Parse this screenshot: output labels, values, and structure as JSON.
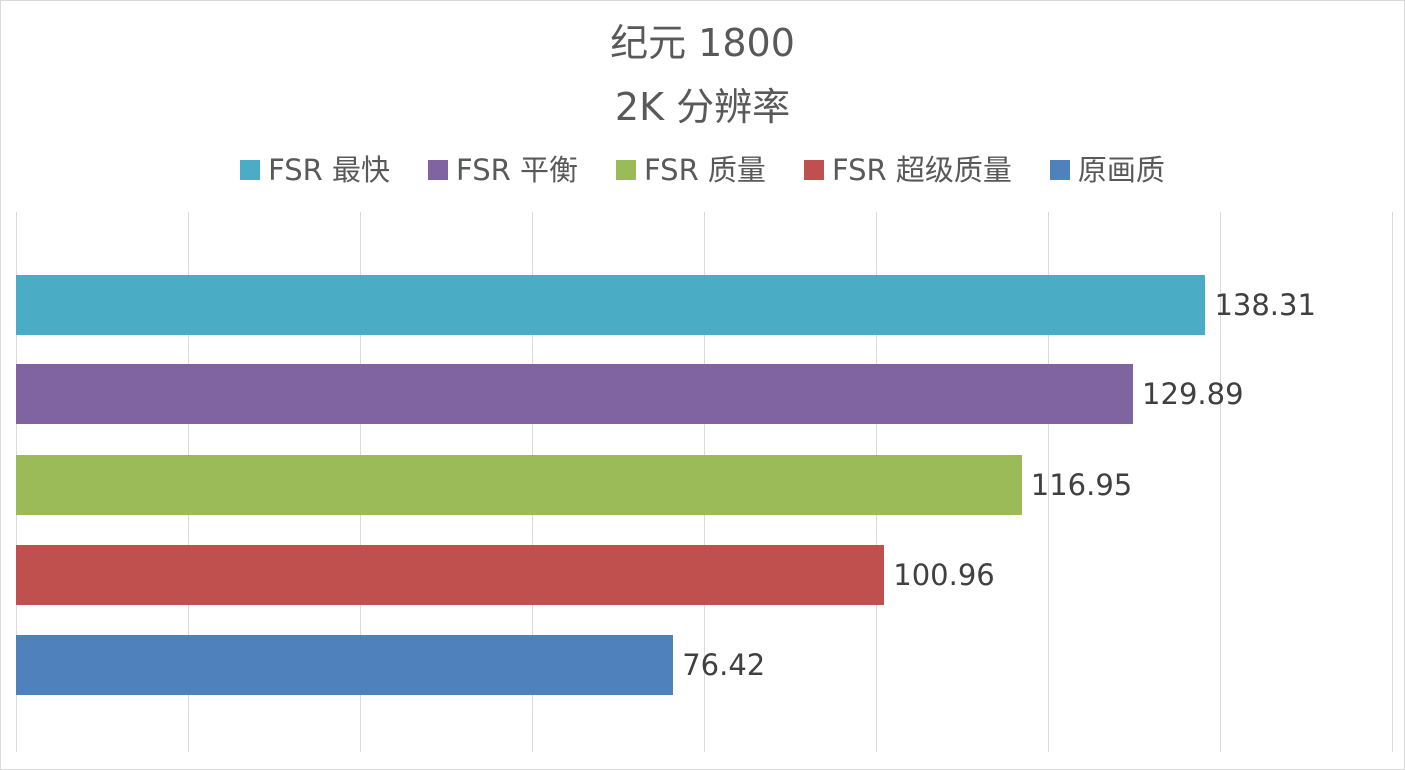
{
  "chart_data": {
    "type": "bar",
    "orientation": "horizontal",
    "title": "纪元 1800",
    "subtitle": "2K 分辨率",
    "xlabel": "",
    "ylabel": "",
    "xlim": [
      0,
      160
    ],
    "grid": true,
    "grid_step": 20,
    "legend_position": "top",
    "data_labels": true,
    "categories": [
      "FSR 最快",
      "FSR 平衡",
      "FSR 质量",
      "FSR 超级质量",
      "原画质"
    ],
    "series": [
      {
        "name": "FSR 最快",
        "value": 138.31,
        "label": "138.31",
        "color": "#4BACC6"
      },
      {
        "name": "FSR 平衡",
        "value": 129.89,
        "label": "129.89",
        "color": "#8064A2"
      },
      {
        "name": "FSR 质量",
        "value": 116.95,
        "label": "116.95",
        "color": "#9BBB59"
      },
      {
        "name": "FSR 超级质量",
        "value": 100.96,
        "label": "100.96",
        "color": "#C0504D"
      },
      {
        "name": "原画质",
        "value": 76.42,
        "label": "76.42",
        "color": "#4F81BD"
      }
    ]
  },
  "title": {
    "line1": "纪元 1800",
    "line2": "2K 分辨率"
  },
  "legend": [
    {
      "label": "FSR 最快",
      "color": "#4BACC6"
    },
    {
      "label": "FSR 平衡",
      "color": "#8064A2"
    },
    {
      "label": "FSR 质量",
      "color": "#9BBB59"
    },
    {
      "label": "FSR 超级质量",
      "color": "#C0504D"
    },
    {
      "label": "原画质",
      "color": "#4F81BD"
    }
  ]
}
